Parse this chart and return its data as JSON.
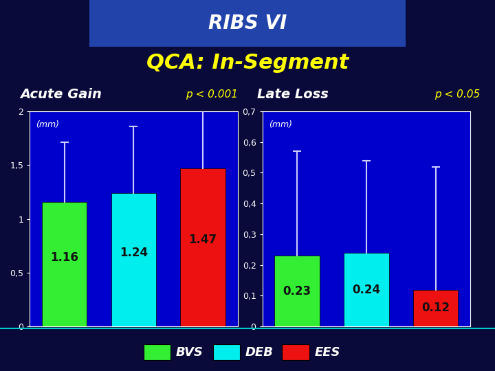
{
  "title_main": "RIBS VI",
  "title_sub": "QCA: In-Segment",
  "background_color": "#0a0a3a",
  "plot_bg_color": "#0000CC",
  "header_bg_color": "#1a1a5e",
  "acute_gain": {
    "label": "Acute Gain",
    "unit": "(mm)",
    "p_value": "p < 0.001",
    "values": [
      1.16,
      1.24,
      1.47
    ],
    "errors_upper": [
      0.55,
      0.62,
      0.7
    ],
    "errors_lower": [
      0.0,
      0.0,
      0.0
    ],
    "ylim": [
      0,
      2
    ],
    "yticks": [
      0,
      0.5,
      1.0,
      1.5,
      2.0
    ],
    "ytick_labels": [
      "0",
      "0,5",
      "1",
      "1,5",
      "2"
    ]
  },
  "late_loss": {
    "label": "Late Loss",
    "unit": "(mm)",
    "p_value": "p < 0.05",
    "values": [
      0.23,
      0.24,
      0.12
    ],
    "errors_upper": [
      0.34,
      0.3,
      0.4
    ],
    "errors_lower": [
      0.0,
      0.0,
      0.0
    ],
    "ylim": [
      0,
      0.7
    ],
    "yticks": [
      0,
      0.1,
      0.2,
      0.3,
      0.4,
      0.5,
      0.6,
      0.7
    ],
    "ytick_labels": [
      "0",
      "0,1",
      "0,2",
      "0,3",
      "0,4",
      "0,5",
      "0,6",
      "0,7"
    ]
  },
  "bar_colors": [
    "#33EE33",
    "#00EEEE",
    "#EE1111"
  ],
  "bar_labels": [
    "BVS",
    "DEB",
    "EES"
  ],
  "bar_edge_color": "#000000",
  "error_color": "#CCCCFF",
  "text_color_white": "#FFFFFF",
  "text_color_yellow": "#FFFF00",
  "text_color_black": "#111111",
  "value_fontsize": 12,
  "label_fontsize": 14,
  "p_fontsize": 11,
  "title_fontsize": 20,
  "subtitle_fontsize": 22,
  "tick_fontsize": 9,
  "footer_legend_fontsize": 13
}
